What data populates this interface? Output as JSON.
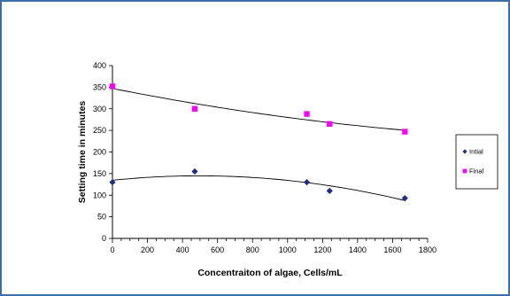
{
  "chart_data": {
    "type": "scatter",
    "xlabel": "Concentraiton of algae, Cells/mL",
    "ylabel": "Setting time in minutes",
    "xlim": [
      0,
      1800
    ],
    "ylim": [
      0,
      400
    ],
    "xticks": [
      0,
      200,
      400,
      600,
      800,
      1000,
      1200,
      1400,
      1600,
      1800
    ],
    "yticks": [
      0,
      50,
      100,
      150,
      200,
      250,
      300,
      350,
      400
    ],
    "grid": false,
    "legend_position": "right",
    "series": [
      {
        "name": "Intial",
        "marker": "diamond",
        "color": "#1f2f86",
        "points": [
          [
            0,
            130
          ],
          [
            470,
            155
          ],
          [
            1110,
            130
          ],
          [
            1240,
            110
          ],
          [
            1670,
            93
          ]
        ],
        "trendline": "polynomial"
      },
      {
        "name": "Final",
        "marker": "square",
        "color": "#ff00ff",
        "points": [
          [
            0,
            352
          ],
          [
            470,
            300
          ],
          [
            1110,
            288
          ],
          [
            1240,
            265
          ],
          [
            1670,
            247
          ]
        ],
        "trendline": "polynomial"
      }
    ]
  }
}
